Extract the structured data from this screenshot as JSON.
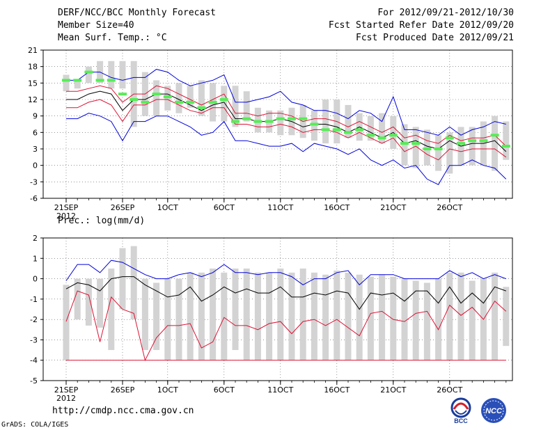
{
  "header": {
    "left_line1": "DERF/NCC/BCC Monthly Forecast",
    "left_line2": "Member Size=40",
    "left_line3": "Mean Surf. Temp.: °C",
    "right_line1": "For 2012/09/21-2012/10/30",
    "right_line2": "Fcst Started Refer Date 2012/09/20",
    "right_line3": "Fcst Produced Date 2012/09/21"
  },
  "precip_label": "Prec.: log(mm/d)",
  "footer": {
    "url": "http://cmdp.ncc.cma.gov.cn",
    "credit": "GrADS: COLA/IGES",
    "logo_bcc": "BCC",
    "logo_ncc": "NCC"
  },
  "colors": {
    "bar": "#d3d3d3",
    "obs": "#55ee55",
    "mean": "#000000",
    "inner": "#dd1133",
    "outer": "#0000dd"
  },
  "chart_data": [
    {
      "type": "box-ensemble",
      "name": "temperature",
      "ylabel": "Mean Surf. Temp.: °C",
      "ylim": [
        -6,
        21
      ],
      "yticks": [
        -6,
        -3,
        0,
        3,
        6,
        9,
        12,
        15,
        18,
        21
      ],
      "x_days": 40,
      "xticks": [
        {
          "day": 0,
          "label": "21SEP"
        },
        {
          "day": 5,
          "label": "26SEP"
        },
        {
          "day": 9,
          "label": "1OCT"
        },
        {
          "day": 14,
          "label": "6OCT"
        },
        {
          "day": 19,
          "label": "11OCT"
        },
        {
          "day": 24,
          "label": "16OCT"
        },
        {
          "day": 29,
          "label": "21OCT"
        },
        {
          "day": 34,
          "label": "26OCT"
        }
      ],
      "year_label": "2012",
      "bar_low": [
        13.5,
        14,
        15,
        15,
        14,
        14,
        7,
        9,
        9,
        10,
        9.5,
        10.5,
        9,
        8,
        8,
        7,
        8,
        6,
        6,
        5.5,
        5.5,
        5,
        4.5,
        4,
        4,
        5,
        4.5,
        4.5,
        4,
        3,
        0,
        -0.5,
        0,
        -1,
        -1.5,
        0,
        0,
        0,
        -1,
        1
      ],
      "bar_high": [
        16.5,
        15.5,
        18,
        19,
        19,
        19,
        19,
        17,
        15.5,
        14.5,
        15,
        14.5,
        15.5,
        15,
        14.5,
        14.5,
        13.5,
        10.5,
        10,
        10,
        10.5,
        11,
        10,
        12,
        12,
        11,
        9.5,
        9,
        9.5,
        9,
        7.5,
        7,
        6.5,
        5.5,
        6,
        7,
        7,
        8,
        9,
        8
      ],
      "ens_mean": [
        12,
        12,
        13,
        13.5,
        13,
        10,
        12,
        12,
        13,
        13,
        12,
        11,
        10,
        11,
        11.5,
        8.5,
        8.5,
        8,
        8,
        8.5,
        8,
        7,
        7.5,
        7.5,
        7,
        6,
        7,
        6,
        5,
        6,
        4,
        4.5,
        3.5,
        3,
        4.5,
        3.5,
        4,
        4,
        4.5,
        2.5
      ],
      "inner_low": [
        10.5,
        10.5,
        11.5,
        12,
        11,
        8,
        11,
        11,
        12,
        12,
        11,
        10,
        9.5,
        10.5,
        10.5,
        7.5,
        7.5,
        7,
        7,
        7.5,
        7,
        6,
        6.5,
        6.5,
        6,
        5,
        6,
        5,
        4,
        5,
        2.5,
        3.5,
        2,
        1,
        3,
        2.5,
        3,
        3,
        3,
        1.5
      ],
      "inner_high": [
        13.5,
        13.5,
        14,
        14.5,
        14,
        11.5,
        13,
        13,
        14.5,
        14,
        13,
        12,
        11,
        12,
        13,
        9.5,
        9.5,
        9,
        9.5,
        9.5,
        9,
        8,
        8.5,
        8.5,
        8,
        7,
        8,
        7,
        6,
        7,
        5,
        5.5,
        4.5,
        4,
        5.5,
        4.5,
        5,
        5,
        5.5,
        3.5
      ],
      "outer_low": [
        8.5,
        8.5,
        9.5,
        9,
        8,
        4.5,
        8,
        8,
        9,
        9,
        8,
        7,
        5.5,
        6,
        8,
        4.5,
        4.5,
        4,
        3.5,
        3.5,
        4,
        2.5,
        4,
        3.5,
        3,
        2,
        3,
        1,
        0,
        1,
        -0.5,
        0,
        -2.5,
        -3.5,
        0,
        0,
        1,
        0,
        -0.5,
        -2.5
      ],
      "outer_high": [
        15.5,
        15.5,
        17,
        17,
        16,
        15.5,
        16,
        16,
        17.5,
        17,
        15.5,
        14.5,
        15,
        15.5,
        16.5,
        11.5,
        11.5,
        12,
        12.5,
        13.5,
        11.5,
        11,
        10,
        10,
        9.5,
        8.5,
        10,
        9.5,
        8,
        12.5,
        6.5,
        6.5,
        6,
        5.5,
        7,
        5.5,
        6.5,
        7,
        8,
        7.5
      ],
      "observed": [
        15.5,
        15.5,
        17,
        15.5,
        15.5,
        13,
        12,
        11.5,
        13,
        12.5,
        11.5,
        11.5,
        10.5,
        11.5,
        12,
        8,
        8.5,
        8,
        8,
        8.5,
        8.5,
        8.5,
        7.5,
        6.5,
        6.5,
        6,
        6.5,
        5.5,
        5,
        5.5,
        4,
        4,
        3,
        3,
        5,
        4,
        4.5,
        4.5,
        5.5,
        3.5
      ]
    },
    {
      "type": "box-ensemble",
      "name": "precipitation",
      "ylabel": "Prec.: log(mm/d)",
      "ylim": [
        -5,
        2
      ],
      "yticks": [
        -5,
        -4,
        -3,
        -2,
        -1,
        0,
        1,
        2
      ],
      "x_days": 40,
      "xticks": [
        {
          "day": 0,
          "label": "21SEP"
        },
        {
          "day": 5,
          "label": "26SEP"
        },
        {
          "day": 9,
          "label": "1OCT"
        },
        {
          "day": 14,
          "label": "6OCT"
        },
        {
          "day": 19,
          "label": "11OCT"
        },
        {
          "day": 24,
          "label": "16OCT"
        },
        {
          "day": 29,
          "label": "21OCT"
        },
        {
          "day": 34,
          "label": "26OCT"
        }
      ],
      "year_label": "2012",
      "bar_low": [
        -4,
        -2,
        -2.3,
        -2.4,
        -3.5,
        -1.5,
        -2,
        -3.5,
        -3.5,
        -4,
        -4,
        -4,
        -4,
        -4,
        -4,
        -3.5,
        -4,
        -4,
        -4,
        -4,
        -4,
        -4,
        -4,
        -4,
        -4,
        -4,
        -4,
        -4,
        -4,
        -4,
        -4,
        -4,
        -4,
        -4,
        -4,
        -4,
        -4,
        -4,
        -4,
        -3.3
      ],
      "bar_high": [
        -0.3,
        0,
        0,
        0,
        0.5,
        1.5,
        1.6,
        0,
        -0.2,
        0,
        0,
        0.3,
        0.3,
        0.5,
        0.3,
        0.5,
        0.5,
        0.3,
        0.3,
        0.5,
        0.3,
        0.5,
        0.3,
        0.2,
        0.4,
        0.3,
        0.2,
        0.1,
        0.2,
        0.1,
        0,
        -0.1,
        -0.2,
        0,
        0.3,
        0.3,
        -0.1,
        0,
        0.3,
        -0.4
      ],
      "ens_mean": [
        -0.5,
        -0.2,
        -0.3,
        -0.6,
        0,
        0.1,
        0.1,
        -0.3,
        -0.6,
        -0.9,
        -0.8,
        -0.4,
        -1.1,
        -0.8,
        -0.4,
        -0.7,
        -0.5,
        -0.7,
        -0.7,
        -0.4,
        -0.9,
        -0.9,
        -0.7,
        -0.8,
        -0.6,
        -0.7,
        -1.5,
        -0.7,
        -0.8,
        -0.7,
        -1.1,
        -0.6,
        -0.6,
        -1.2,
        -0.4,
        -1.2,
        -0.7,
        -1.2,
        -0.4,
        -0.6
      ],
      "inner_low": [
        -2.1,
        -0.6,
        -0.8,
        -3.1,
        -0.9,
        -1.5,
        -1.7,
        -4,
        -2.9,
        -2.3,
        -2.3,
        -2.2,
        -3.4,
        -3.1,
        -1.9,
        -2.3,
        -2.3,
        -2.5,
        -2.2,
        -2.1,
        -2.7,
        -2.1,
        -2,
        -2.3,
        -2,
        -2.4,
        -2.8,
        -1.7,
        -1.6,
        -2,
        -2.1,
        -1.7,
        -1.6,
        -2.5,
        -1.3,
        -1.8,
        -1.4,
        -2,
        -1.1,
        -1.6
      ],
      "inner_high": [
        -0.3,
        0,
        -0.1,
        -0.3,
        0.2,
        0.2,
        0.2,
        -0.1,
        -0.4,
        -0.6,
        -0.5,
        -0.2,
        -0.8,
        -0.5,
        -0.2,
        -0.4,
        -0.3,
        -0.4,
        -0.4,
        -0.2,
        -0.6,
        -0.6,
        -0.4,
        -0.5,
        -0.3,
        -0.4,
        -1.2,
        -0.4,
        -0.5,
        -0.4,
        -0.8,
        -0.3,
        -0.3,
        -0.9,
        -0.1,
        -0.9,
        -0.4,
        -0.9,
        -0.1,
        -0.3
      ],
      "outer_low": [
        -4,
        -4,
        -4,
        -4,
        -4,
        -4,
        -4,
        -4,
        -4,
        -4,
        -4,
        -4,
        -4,
        -4,
        -4,
        -4,
        -4,
        -4,
        -4,
        -4,
        -4,
        -4,
        -4,
        -4,
        -4,
        -4,
        -4,
        -4,
        -4,
        -4,
        -4,
        -4,
        -4,
        -4,
        -4,
        -4,
        -4,
        -4,
        -4,
        -4
      ],
      "outer_high": [
        -0.1,
        0.7,
        0.7,
        0.3,
        0.9,
        0.8,
        0.5,
        0.2,
        0,
        0,
        0.2,
        0.3,
        0.1,
        0.3,
        0.7,
        0.3,
        0.3,
        0.2,
        0.3,
        0.3,
        0.1,
        -0.3,
        0,
        0,
        0.3,
        0.4,
        -0.3,
        0.2,
        0.2,
        0.2,
        0,
        0,
        0,
        0,
        0.4,
        0.1,
        0.3,
        0,
        0.2,
        0
      ]
    }
  ]
}
